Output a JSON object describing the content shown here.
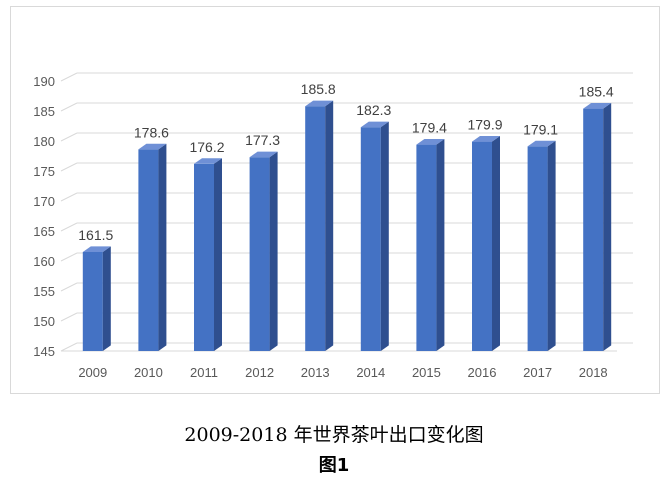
{
  "chart_data": {
    "type": "bar",
    "categories": [
      "2009",
      "2010",
      "2011",
      "2012",
      "2013",
      "2014",
      "2015",
      "2016",
      "2017",
      "2018"
    ],
    "values": [
      161.5,
      178.6,
      176.2,
      177.3,
      185.8,
      182.3,
      179.4,
      179.9,
      179.1,
      185.4
    ],
    "data_labels": [
      "161.5",
      "178.6",
      "176.2",
      "177.3",
      "185.8",
      "182.3",
      "179.4",
      "179.9",
      "179.1",
      "185.4"
    ],
    "ylim": [
      145,
      190
    ],
    "yticks": [
      "145",
      "150",
      "155",
      "160",
      "165",
      "170",
      "175",
      "180",
      "185",
      "190"
    ],
    "grid": true,
    "style": "3d-column",
    "colors": {
      "bar_front": "#4472c4",
      "bar_side": "#2f4f8f",
      "bar_top": "#6f90d6",
      "grid": "#d9d9d9",
      "tick_text": "#595959"
    }
  },
  "caption": {
    "title": "2009-2018 年世界茶叶出口变化图",
    "figure_label": "图1"
  }
}
